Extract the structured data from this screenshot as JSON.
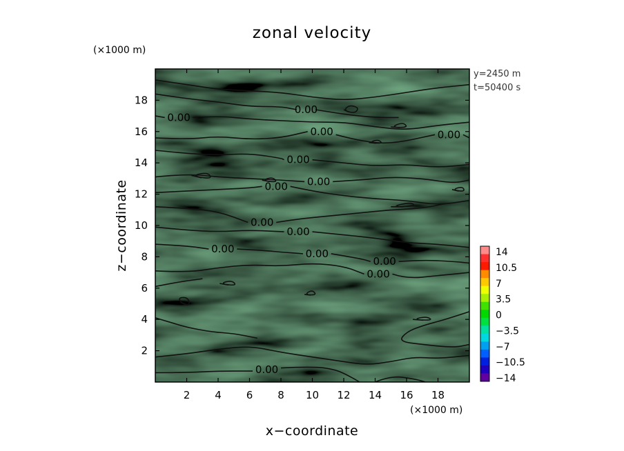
{
  "chart_data": {
    "type": "heatmap",
    "title": "zonal velocity",
    "xlabel": "x−coordinate",
    "ylabel": "z−coordinate",
    "x_unit": "(×1000 m)",
    "y_unit": "(×1000 m)",
    "xlim": [
      0,
      20
    ],
    "ylim": [
      0,
      20
    ],
    "x_ticks": [
      2,
      4,
      6,
      8,
      10,
      12,
      14,
      16,
      18
    ],
    "y_ticks": [
      2,
      4,
      6,
      8,
      10,
      12,
      14,
      16,
      18
    ],
    "annotations": [
      "y=2450 m",
      "t=50400 s"
    ],
    "colorbar": {
      "levels": [
        14,
        10.5,
        7,
        3.5,
        0,
        -3.5,
        -7,
        -10.5,
        -14
      ],
      "labels": [
        "14",
        "10.5",
        "7",
        "3.5",
        "0",
        "−3.5",
        "−7",
        "−10.5",
        "−14"
      ],
      "colors_top_to_bottom": [
        "#ff8a8a",
        "#ff3030",
        "#ff1a00",
        "#ff8c00",
        "#ffc800",
        "#f0ff00",
        "#a8f000",
        "#40e000",
        "#00d800",
        "#00e040",
        "#00e0a0",
        "#00d8e0",
        "#00a0f0",
        "#0060ff",
        "#0020e0",
        "#2000c0",
        "#6000a0"
      ]
    },
    "field_color": "#38e83a",
    "contour_level": 0.0,
    "contour_labels": [
      {
        "text": "0.00",
        "x": 1.5,
        "z": 16.9
      },
      {
        "text": "0.00",
        "x": 9.6,
        "z": 17.4
      },
      {
        "text": "0.00",
        "x": 10.6,
        "z": 16.0
      },
      {
        "text": "0.00",
        "x": 18.7,
        "z": 15.8
      },
      {
        "text": "0.00",
        "x": 9.1,
        "z": 14.2
      },
      {
        "text": "0.00",
        "x": 10.4,
        "z": 12.8
      },
      {
        "text": "0.00",
        "x": 7.7,
        "z": 12.5
      },
      {
        "text": "0.00",
        "x": 6.8,
        "z": 10.2
      },
      {
        "text": "0.00",
        "x": 9.1,
        "z": 9.6
      },
      {
        "text": "0.00",
        "x": 4.3,
        "z": 8.5
      },
      {
        "text": "0.00",
        "x": 10.3,
        "z": 8.2
      },
      {
        "text": "0.00",
        "x": 14.6,
        "z": 7.7
      },
      {
        "text": "0.00",
        "x": 14.2,
        "z": 6.9
      },
      {
        "text": "0.00",
        "x": 7.1,
        "z": 0.8
      }
    ],
    "contour_lines": [
      [
        [
          0,
          19.3
        ],
        [
          2,
          19.0
        ],
        [
          4,
          18.7
        ],
        [
          6,
          18.6
        ],
        [
          8,
          18.5
        ],
        [
          10,
          18.2
        ],
        [
          12,
          18.0
        ],
        [
          14,
          18.2
        ],
        [
          16,
          18.5
        ],
        [
          18,
          18.8
        ],
        [
          20,
          19.0
        ]
      ],
      [
        [
          0,
          18.4
        ],
        [
          2,
          18.1
        ],
        [
          4,
          17.9
        ],
        [
          6,
          17.6
        ],
        [
          8,
          17.6
        ],
        [
          9.0,
          17.4
        ]
      ],
      [
        [
          10.2,
          17.4
        ],
        [
          12,
          17.1
        ],
        [
          14,
          16.9
        ],
        [
          15.5,
          16.9
        ]
      ],
      [
        [
          0,
          17.0
        ],
        [
          0.6,
          16.9
        ]
      ],
      [
        [
          2.4,
          16.9
        ],
        [
          4,
          17.0
        ],
        [
          6,
          16.8
        ],
        [
          8,
          16.7
        ],
        [
          10,
          16.6
        ],
        [
          12,
          16.6
        ],
        [
          14,
          16.3
        ],
        [
          16,
          16.1
        ],
        [
          18,
          16.4
        ],
        [
          20,
          16.6
        ]
      ],
      [
        [
          0,
          15.6
        ],
        [
          2,
          15.5
        ],
        [
          4,
          15.7
        ],
        [
          6,
          15.5
        ],
        [
          8,
          15.6
        ],
        [
          9.7,
          16.0
        ]
      ],
      [
        [
          11.5,
          15.8
        ],
        [
          13,
          15.4
        ],
        [
          15,
          15.2
        ],
        [
          17.8,
          15.8
        ]
      ],
      [
        [
          19.6,
          15.8
        ],
        [
          20,
          15.6
        ]
      ],
      [
        [
          0,
          14.8
        ],
        [
          2,
          14.6
        ],
        [
          4,
          14.5
        ],
        [
          6,
          14.6
        ],
        [
          8,
          14.3
        ],
        [
          8.2,
          14.2
        ]
      ],
      [
        [
          10.0,
          14.2
        ],
        [
          12,
          14.0
        ],
        [
          14,
          13.8
        ],
        [
          16,
          13.9
        ],
        [
          18,
          13.7
        ],
        [
          20,
          13.9
        ]
      ],
      [
        [
          0,
          13.1
        ],
        [
          2,
          13.3
        ],
        [
          4,
          13.1
        ],
        [
          6,
          13.0
        ],
        [
          8,
          12.9
        ],
        [
          9.5,
          12.8
        ]
      ],
      [
        [
          11.3,
          12.8
        ],
        [
          13,
          12.9
        ],
        [
          15,
          13.1
        ],
        [
          17,
          13.0
        ],
        [
          19,
          12.7
        ],
        [
          20,
          12.9
        ]
      ],
      [
        [
          0,
          12.1
        ],
        [
          2,
          12.2
        ],
        [
          4,
          12.3
        ],
        [
          6,
          12.4
        ],
        [
          6.8,
          12.5
        ]
      ],
      [
        [
          8.6,
          12.5
        ],
        [
          10,
          12.2
        ],
        [
          12,
          11.9
        ],
        [
          14,
          11.7
        ],
        [
          16,
          11.6
        ],
        [
          18,
          11.3
        ],
        [
          20,
          11.6
        ]
      ],
      [
        [
          0,
          11.2
        ],
        [
          2,
          11.1
        ],
        [
          4,
          10.9
        ],
        [
          5.9,
          10.2
        ]
      ],
      [
        [
          7.7,
          10.2
        ],
        [
          9,
          10.4
        ],
        [
          11,
          10.6
        ],
        [
          13,
          10.8
        ],
        [
          15,
          11.0
        ],
        [
          17,
          11.1
        ],
        [
          18.5,
          11.4
        ]
      ],
      [
        [
          0,
          9.9
        ],
        [
          2,
          9.7
        ],
        [
          4,
          9.6
        ],
        [
          6,
          9.7
        ],
        [
          8.2,
          9.6
        ]
      ],
      [
        [
          10.0,
          9.6
        ],
        [
          12,
          9.4
        ],
        [
          14,
          9.2
        ],
        [
          16,
          8.9
        ],
        [
          18,
          8.8
        ],
        [
          20,
          8.6
        ]
      ],
      [
        [
          0,
          8.8
        ],
        [
          2,
          8.7
        ],
        [
          3.4,
          8.5
        ]
      ],
      [
        [
          5.2,
          8.5
        ],
        [
          7,
          8.4
        ],
        [
          8,
          8.3
        ],
        [
          9.4,
          8.2
        ]
      ],
      [
        [
          11.2,
          8.2
        ],
        [
          13,
          7.9
        ],
        [
          13.7,
          7.7
        ]
      ],
      [
        [
          15.5,
          7.7
        ],
        [
          17,
          7.8
        ],
        [
          19,
          7.7
        ],
        [
          20,
          7.6
        ]
      ],
      [
        [
          0,
          7.1
        ],
        [
          2,
          7.0
        ],
        [
          4,
          7.3
        ],
        [
          6,
          7.5
        ],
        [
          8,
          7.4
        ],
        [
          10,
          7.6
        ],
        [
          12,
          7.4
        ],
        [
          13.3,
          6.9
        ]
      ],
      [
        [
          15.1,
          6.9
        ],
        [
          16,
          6.6
        ],
        [
          18,
          6.8
        ],
        [
          20,
          7.0
        ]
      ],
      [
        [
          0,
          6.1
        ],
        [
          1.5,
          6.4
        ],
        [
          3,
          6.6
        ]
      ],
      [
        [
          0,
          4.1
        ],
        [
          1,
          3.8
        ],
        [
          2,
          3.5
        ],
        [
          3.6,
          3.2
        ],
        [
          5,
          3.1
        ],
        [
          6.5,
          2.8
        ]
      ],
      [
        [
          20,
          4.5
        ],
        [
          18.5,
          4.0
        ],
        [
          17,
          3.6
        ],
        [
          16,
          3.2
        ],
        [
          15.5,
          2.6
        ],
        [
          17,
          2.4
        ],
        [
          19,
          2.2
        ],
        [
          20,
          2.4
        ]
      ],
      [
        [
          0,
          1.6
        ],
        [
          2,
          1.8
        ],
        [
          4,
          2.1
        ],
        [
          6,
          2.3
        ],
        [
          8,
          1.9
        ],
        [
          10,
          1.6
        ],
        [
          12,
          1.3
        ],
        [
          13.5,
          1.1
        ],
        [
          15,
          1.3
        ],
        [
          16.5,
          1.6
        ],
        [
          18,
          1.5
        ],
        [
          20,
          1.7
        ]
      ],
      [
        [
          0,
          0.6
        ],
        [
          2,
          0.6
        ],
        [
          4,
          0.7
        ],
        [
          6.2,
          0.7
        ]
      ],
      [
        [
          8.0,
          0.9
        ],
        [
          10,
          1.0
        ],
        [
          11.5,
          0.8
        ],
        [
          12.5,
          0.3
        ],
        [
          13,
          0.0
        ]
      ],
      [
        [
          14,
          0.0
        ],
        [
          15,
          0.4
        ],
        [
          16.5,
          0.2
        ],
        [
          17.2,
          0.0
        ]
      ]
    ],
    "contour_loops": [
      [
        [
          1.6,
          5.1
        ],
        [
          2.2,
          4.8
        ],
        [
          2.1,
          5.4
        ],
        [
          1.5,
          5.4
        ]
      ],
      [
        [
          12.0,
          17.4
        ],
        [
          12.6,
          17.1
        ],
        [
          13.0,
          17.5
        ],
        [
          12.4,
          17.7
        ]
      ],
      [
        [
          2.3,
          13.2
        ],
        [
          3.6,
          12.9
        ],
        [
          3.4,
          13.4
        ]
      ],
      [
        [
          18.9,
          12.3
        ],
        [
          19.7,
          12.1
        ],
        [
          19.6,
          12.5
        ]
      ],
      [
        [
          15.0,
          11.2
        ],
        [
          16.6,
          11.2
        ],
        [
          16.3,
          11.5
        ]
      ],
      [
        [
          16.4,
          4.0
        ],
        [
          17.7,
          3.9
        ],
        [
          17.3,
          4.2
        ]
      ],
      [
        [
          9.5,
          5.6
        ],
        [
          10.3,
          5.5
        ],
        [
          10.0,
          5.9
        ]
      ],
      [
        [
          4.1,
          6.3
        ],
        [
          5.2,
          6.1
        ],
        [
          4.9,
          6.5
        ]
      ],
      [
        [
          6.8,
          12.9
        ],
        [
          7.8,
          12.7
        ],
        [
          7.5,
          13.1
        ]
      ],
      [
        [
          13.6,
          15.3
        ],
        [
          14.5,
          15.2
        ],
        [
          14.2,
          15.5
        ]
      ],
      [
        [
          15.0,
          16.3
        ],
        [
          16.1,
          16.2
        ],
        [
          15.8,
          16.6
        ]
      ]
    ]
  }
}
